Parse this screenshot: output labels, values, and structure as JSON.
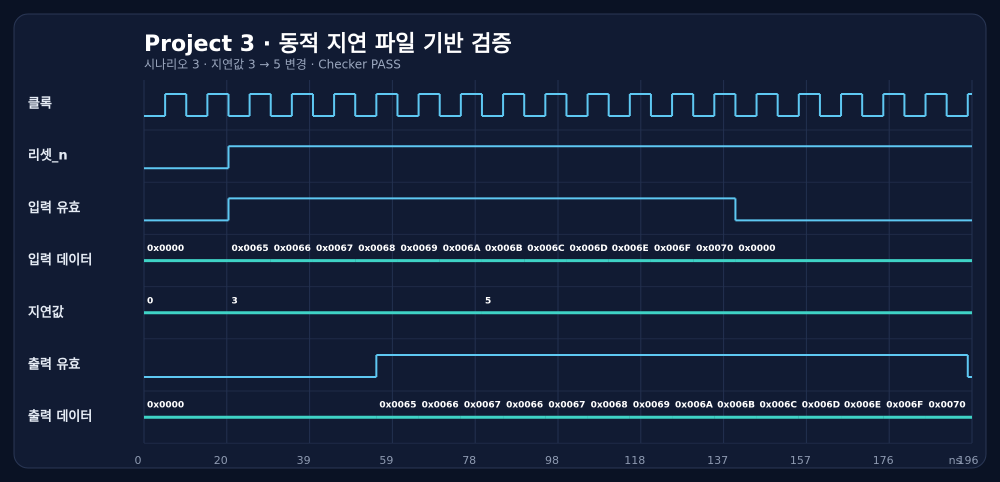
{
  "chart_data": {
    "type": "timing",
    "title": "Project 3 · 동적 지연 파일 기반 검증",
    "subtitle": "시나리오 3 · 지연값 3 → 5 변경 · Checker PASS",
    "xlabel": "ns",
    "xlim": [
      0,
      196
    ],
    "xticks": [
      0,
      {
        "value": 19.6,
        "label": "20"
      },
      {
        "value": 39.2,
        "label": "39"
      },
      {
        "value": 58.8,
        "label": "59"
      },
      {
        "value": 78.4,
        "label": "78"
      },
      98,
      {
        "value": 117.6,
        "label": "118"
      },
      {
        "value": 137.2,
        "label": "137"
      },
      {
        "value": 156.8,
        "label": "157"
      },
      {
        "value": 176.4,
        "label": "176"
      },
      196
    ],
    "grid": true,
    "signals": [
      {
        "name": "클록",
        "kind": "bit",
        "color": "#5ec8f2",
        "times": [
          0,
          5,
          10,
          15,
          20,
          25,
          30,
          35,
          40,
          45,
          50,
          55,
          60,
          65,
          70,
          75,
          80,
          85,
          90,
          95,
          100,
          105,
          110,
          115,
          120,
          125,
          130,
          135,
          140,
          145,
          150,
          155,
          160,
          165,
          170,
          175,
          180,
          185,
          190,
          195
        ],
        "values": [
          0,
          1,
          0,
          1,
          0,
          1,
          0,
          1,
          0,
          1,
          0,
          1,
          0,
          1,
          0,
          1,
          0,
          1,
          0,
          1,
          0,
          1,
          0,
          1,
          0,
          1,
          0,
          1,
          0,
          1,
          0,
          1,
          0,
          1,
          0,
          1,
          0,
          1,
          0,
          1
        ]
      },
      {
        "name": "리셋_n",
        "kind": "bit",
        "color": "#5ec8f2",
        "times": [
          0,
          20
        ],
        "values": [
          0,
          1
        ]
      },
      {
        "name": "입력 유효",
        "kind": "bit",
        "color": "#5ec8f2",
        "times": [
          0,
          20,
          140
        ],
        "values": [
          0,
          1,
          0
        ]
      },
      {
        "name": "입력 데이터",
        "kind": "bus",
        "color": "#3fd3c6",
        "times": [
          0,
          20,
          30,
          40,
          50,
          60,
          70,
          80,
          90,
          100,
          110,
          120,
          130,
          140
        ],
        "values": [
          "0x0000",
          "0x0065",
          "0x0066",
          "0x0067",
          "0x0068",
          "0x0069",
          "0x006A",
          "0x006B",
          "0x006C",
          "0x006D",
          "0x006E",
          "0x006F",
          "0x0070",
          "0x0000"
        ]
      },
      {
        "name": "지연값",
        "kind": "bus",
        "color": "#3fd3c6",
        "times": [
          0,
          20,
          80
        ],
        "values": [
          0,
          3,
          5
        ]
      },
      {
        "name": "출력 유효",
        "kind": "bit",
        "color": "#5ec8f2",
        "times": [
          0,
          55,
          195
        ],
        "values": [
          0,
          1,
          0
        ]
      },
      {
        "name": "출력 데이터",
        "kind": "bus",
        "color": "#3fd3c6",
        "times": [
          0,
          55,
          65,
          75,
          85,
          95,
          105,
          115,
          125,
          135,
          145,
          155,
          165,
          175,
          185
        ],
        "values": [
          "0x0000",
          "0x0065",
          "0x0066",
          "0x0067",
          "0x0066",
          "0x0067",
          "0x0068",
          "0x0069",
          "0x006A",
          "0x006B",
          "0x006C",
          "0x006D",
          "0x006E",
          "0x006F",
          "0x0070"
        ]
      }
    ]
  }
}
